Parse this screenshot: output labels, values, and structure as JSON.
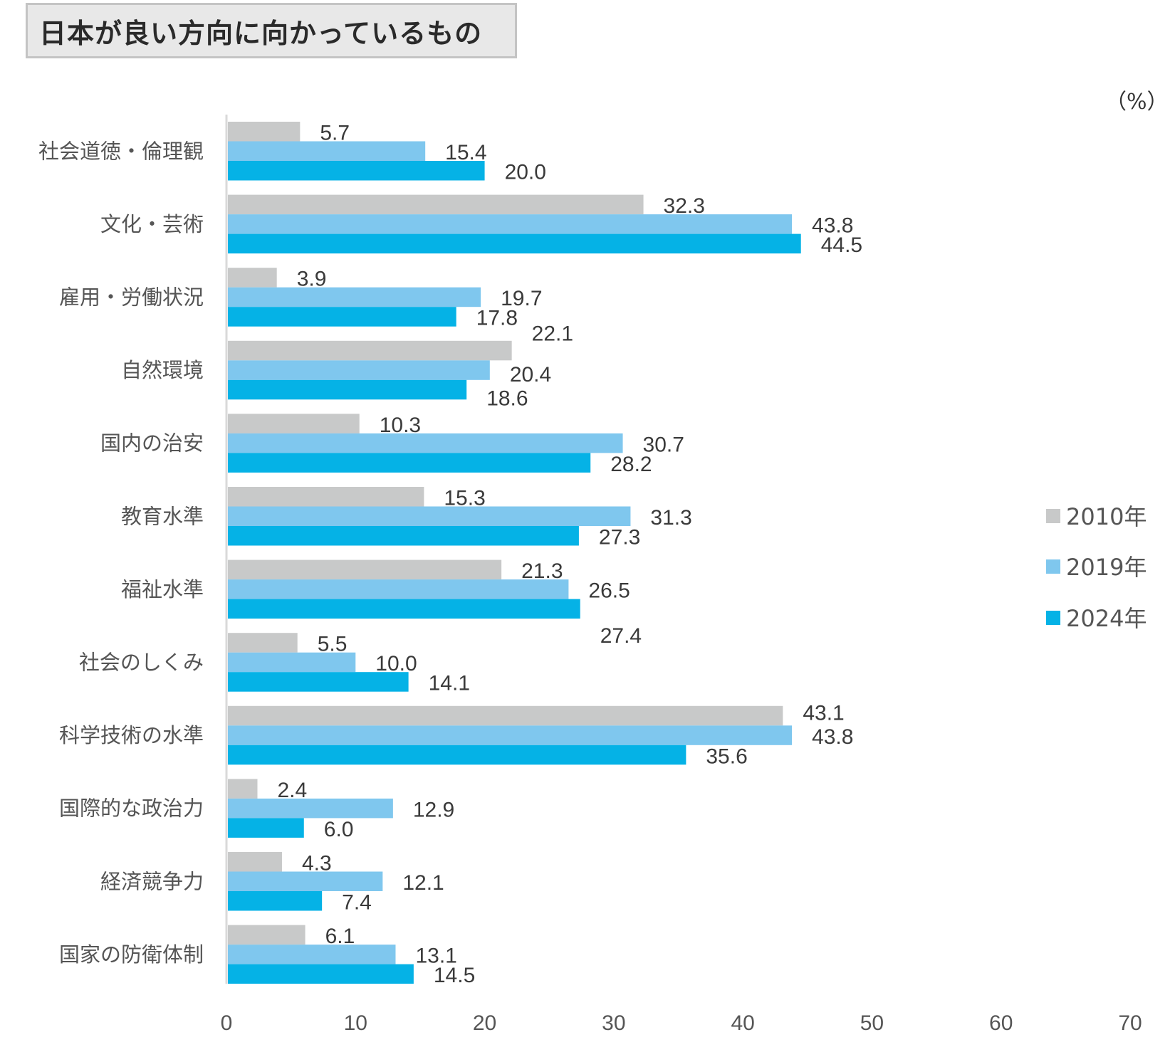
{
  "title": "日本が良い方向に向かっているもの",
  "unit_label": "（%）",
  "chart_data": {
    "type": "bar",
    "orientation": "horizontal",
    "title": "日本が良い方向に向かっているもの",
    "xlabel": "",
    "ylabel": "",
    "unit": "%",
    "xlim": [
      0,
      70
    ],
    "xticks": [
      0,
      10,
      20,
      30,
      40,
      50,
      60,
      70
    ],
    "grid": false,
    "legend_position": "right",
    "categories": [
      "社会道徳・倫理観",
      "文化・芸術",
      "雇用・労働状況",
      "自然環境",
      "国内の治安",
      "教育水準",
      "福祉水準",
      "社会のしくみ",
      "科学技術の水準",
      "国際的な政治力",
      "経済競争力",
      "国家の防衛体制"
    ],
    "series": [
      {
        "name": "2010年",
        "color": "#c8c9c9",
        "values": [
          5.7,
          32.3,
          3.9,
          22.1,
          10.3,
          15.3,
          21.3,
          5.5,
          43.1,
          2.4,
          4.3,
          6.1
        ]
      },
      {
        "name": "2019年",
        "color": "#7fc7ee",
        "values": [
          15.4,
          43.8,
          19.7,
          20.4,
          30.7,
          31.3,
          26.5,
          10.0,
          43.8,
          12.9,
          12.1,
          13.1
        ]
      },
      {
        "name": "2024年",
        "color": "#05b2e6",
        "values": [
          20.0,
          44.5,
          17.8,
          18.6,
          28.2,
          27.3,
          27.4,
          14.1,
          35.6,
          6.0,
          7.4,
          14.5
        ]
      }
    ]
  }
}
